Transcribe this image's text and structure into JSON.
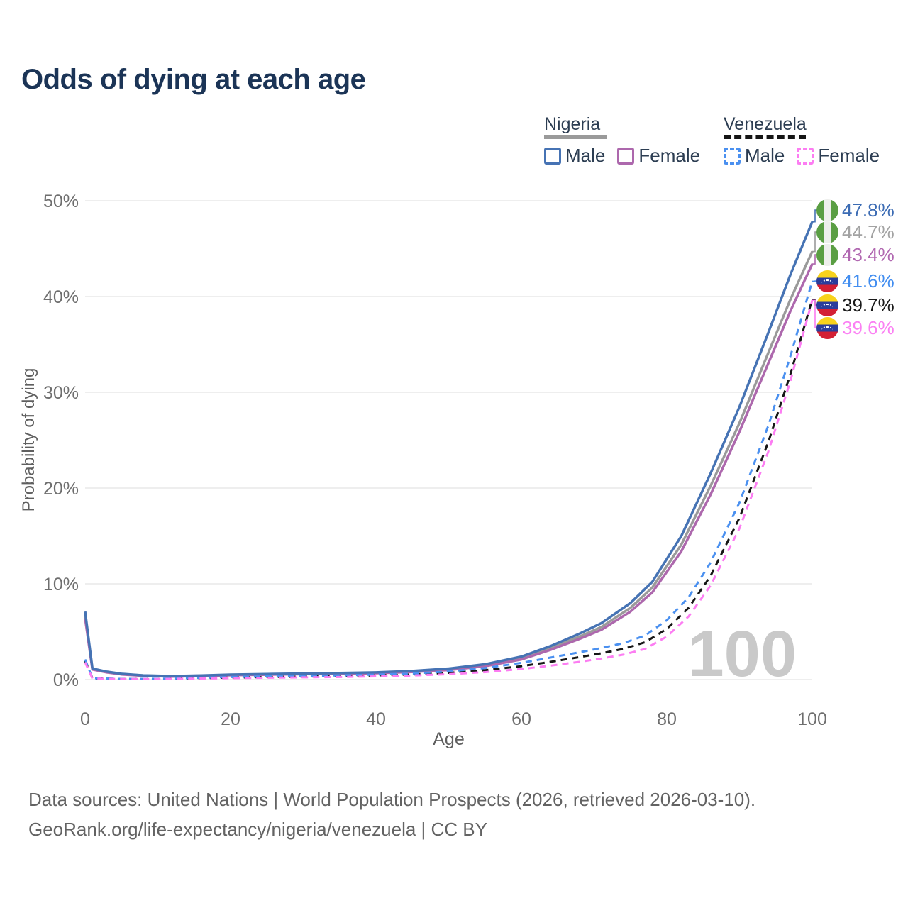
{
  "title": "Odds of dying at each age",
  "legend": {
    "groups": [
      {
        "country": "Nigeria",
        "line_style": "solid",
        "swatch_color": "#9a9a9a",
        "items": [
          {
            "label": "Male",
            "color": "#4673b4"
          },
          {
            "label": "Female",
            "color": "#ad68ad"
          }
        ]
      },
      {
        "country": "Venezuela",
        "line_style": "dashed",
        "swatch_color": "#151515",
        "items": [
          {
            "label": "Male",
            "color": "#4a90f0"
          },
          {
            "label": "Female",
            "color": "#fc7df2"
          }
        ]
      }
    ]
  },
  "footer": {
    "line1": "Data sources: United Nations | World Population Prospects (2026, retrieved 2026-03-10).",
    "line2": "GeoRank.org/life-expectancy/nigeria/venezuela | CC BY"
  },
  "chart_data": {
    "type": "line",
    "title": "Odds of dying at each age",
    "xlabel": "Age",
    "ylabel": "Probability of dying",
    "xlim": [
      0,
      100
    ],
    "ylim": [
      0,
      50
    ],
    "grid": "horizontal",
    "watermark": "100",
    "x_ticks": [
      0,
      20,
      40,
      60,
      80,
      100
    ],
    "y_ticks": [
      {
        "value": 0,
        "label": "0%"
      },
      {
        "value": 10,
        "label": "10%"
      },
      {
        "value": 20,
        "label": "20%"
      },
      {
        "value": 30,
        "label": "30%"
      },
      {
        "value": 40,
        "label": "40%"
      },
      {
        "value": 50,
        "label": "50%"
      }
    ],
    "series": [
      {
        "name": "Nigeria Male",
        "country": "Nigeria",
        "sex": "male",
        "color": "#4673b4",
        "dash": "solid",
        "end_value_pct": 47.8,
        "points": [
          [
            0,
            7.1
          ],
          [
            1,
            1.15
          ],
          [
            3,
            0.82
          ],
          [
            5,
            0.6
          ],
          [
            8,
            0.44
          ],
          [
            12,
            0.36
          ],
          [
            16,
            0.43
          ],
          [
            20,
            0.52
          ],
          [
            25,
            0.58
          ],
          [
            30,
            0.63
          ],
          [
            35,
            0.68
          ],
          [
            40,
            0.75
          ],
          [
            45,
            0.9
          ],
          [
            50,
            1.15
          ],
          [
            55,
            1.6
          ],
          [
            60,
            2.4
          ],
          [
            64,
            3.5
          ],
          [
            68,
            4.8
          ],
          [
            71,
            5.9
          ],
          [
            75,
            8.0
          ],
          [
            78,
            10.2
          ],
          [
            82,
            15.0
          ],
          [
            86,
            21.5
          ],
          [
            90,
            28.5
          ],
          [
            94,
            36.3
          ],
          [
            97,
            42.3
          ],
          [
            100,
            47.8
          ]
        ]
      },
      {
        "name": "Nigeria Both sexes",
        "country": "Nigeria",
        "sex": "both",
        "color": "#9a9a9a",
        "dash": "solid",
        "end_value_pct": 44.7,
        "points": [
          [
            0,
            6.8
          ],
          [
            1,
            1.1
          ],
          [
            3,
            0.78
          ],
          [
            5,
            0.57
          ],
          [
            8,
            0.42
          ],
          [
            12,
            0.34
          ],
          [
            16,
            0.41
          ],
          [
            20,
            0.49
          ],
          [
            25,
            0.55
          ],
          [
            30,
            0.6
          ],
          [
            35,
            0.64
          ],
          [
            40,
            0.71
          ],
          [
            45,
            0.85
          ],
          [
            50,
            1.08
          ],
          [
            55,
            1.5
          ],
          [
            60,
            2.25
          ],
          [
            64,
            3.3
          ],
          [
            68,
            4.5
          ],
          [
            71,
            5.5
          ],
          [
            75,
            7.5
          ],
          [
            78,
            9.6
          ],
          [
            82,
            14.1
          ],
          [
            86,
            20.2
          ],
          [
            90,
            26.8
          ],
          [
            94,
            34.2
          ],
          [
            97,
            39.7
          ],
          [
            100,
            44.7
          ]
        ]
      },
      {
        "name": "Nigeria Female",
        "country": "Nigeria",
        "sex": "female",
        "color": "#ad68ad",
        "dash": "solid",
        "end_value_pct": 43.4,
        "points": [
          [
            0,
            6.4
          ],
          [
            1,
            1.05
          ],
          [
            3,
            0.75
          ],
          [
            5,
            0.54
          ],
          [
            8,
            0.4
          ],
          [
            12,
            0.32
          ],
          [
            16,
            0.38
          ],
          [
            20,
            0.45
          ],
          [
            25,
            0.51
          ],
          [
            30,
            0.56
          ],
          [
            35,
            0.6
          ],
          [
            40,
            0.67
          ],
          [
            45,
            0.8
          ],
          [
            50,
            1.0
          ],
          [
            55,
            1.4
          ],
          [
            60,
            2.1
          ],
          [
            64,
            3.1
          ],
          [
            68,
            4.25
          ],
          [
            71,
            5.2
          ],
          [
            75,
            7.1
          ],
          [
            78,
            9.1
          ],
          [
            82,
            13.4
          ],
          [
            86,
            19.3
          ],
          [
            90,
            25.9
          ],
          [
            94,
            33.1
          ],
          [
            97,
            38.5
          ],
          [
            100,
            43.4
          ]
        ]
      },
      {
        "name": "Venezuela Male",
        "country": "Venezuela",
        "sex": "male",
        "color": "#4a90f0",
        "dash": "dashed",
        "end_value_pct": 41.6,
        "points": [
          [
            0,
            2.1
          ],
          [
            1,
            0.15
          ],
          [
            5,
            0.07
          ],
          [
            10,
            0.08
          ],
          [
            15,
            0.16
          ],
          [
            20,
            0.27
          ],
          [
            25,
            0.33
          ],
          [
            30,
            0.38
          ],
          [
            35,
            0.44
          ],
          [
            40,
            0.52
          ],
          [
            45,
            0.63
          ],
          [
            50,
            0.85
          ],
          [
            55,
            1.2
          ],
          [
            60,
            1.75
          ],
          [
            64,
            2.3
          ],
          [
            68,
            2.85
          ],
          [
            71,
            3.3
          ],
          [
            74,
            3.8
          ],
          [
            77,
            4.6
          ],
          [
            80,
            6.2
          ],
          [
            83,
            8.6
          ],
          [
            86,
            12.2
          ],
          [
            90,
            18.5
          ],
          [
            94,
            26.6
          ],
          [
            97,
            33.8
          ],
          [
            100,
            41.6
          ]
        ]
      },
      {
        "name": "Venezuela Both sexes",
        "country": "Venezuela",
        "sex": "both",
        "color": "#161616",
        "dash": "dashed",
        "end_value_pct": 39.7,
        "points": [
          [
            0,
            1.95
          ],
          [
            1,
            0.13
          ],
          [
            5,
            0.06
          ],
          [
            10,
            0.07
          ],
          [
            15,
            0.13
          ],
          [
            20,
            0.21
          ],
          [
            25,
            0.26
          ],
          [
            30,
            0.31
          ],
          [
            35,
            0.36
          ],
          [
            40,
            0.43
          ],
          [
            45,
            0.53
          ],
          [
            50,
            0.7
          ],
          [
            55,
            0.98
          ],
          [
            60,
            1.4
          ],
          [
            64,
            1.85
          ],
          [
            68,
            2.35
          ],
          [
            71,
            2.75
          ],
          [
            74,
            3.2
          ],
          [
            77,
            3.9
          ],
          [
            80,
            5.3
          ],
          [
            83,
            7.5
          ],
          [
            86,
            10.8
          ],
          [
            90,
            16.9
          ],
          [
            94,
            24.9
          ],
          [
            97,
            31.9
          ],
          [
            100,
            39.7
          ]
        ]
      },
      {
        "name": "Venezuela Female",
        "country": "Venezuela",
        "sex": "female",
        "color": "#fc7df2",
        "dash": "dashed",
        "end_value_pct": 39.6,
        "points": [
          [
            0,
            1.8
          ],
          [
            1,
            0.11
          ],
          [
            5,
            0.05
          ],
          [
            10,
            0.06
          ],
          [
            15,
            0.1
          ],
          [
            20,
            0.15
          ],
          [
            25,
            0.19
          ],
          [
            30,
            0.23
          ],
          [
            35,
            0.27
          ],
          [
            40,
            0.33
          ],
          [
            45,
            0.42
          ],
          [
            50,
            0.56
          ],
          [
            55,
            0.78
          ],
          [
            60,
            1.1
          ],
          [
            64,
            1.45
          ],
          [
            68,
            1.85
          ],
          [
            71,
            2.2
          ],
          [
            74,
            2.6
          ],
          [
            77,
            3.2
          ],
          [
            80,
            4.5
          ],
          [
            83,
            6.6
          ],
          [
            86,
            9.8
          ],
          [
            90,
            15.8
          ],
          [
            94,
            23.9
          ],
          [
            97,
            31.2
          ],
          [
            100,
            39.6
          ]
        ]
      }
    ],
    "end_labels": [
      {
        "value": "47.8%",
        "flag": "nigeria",
        "color": "#3c6cb4"
      },
      {
        "value": "44.7%",
        "flag": "nigeria",
        "color": "#a3a3a3"
      },
      {
        "value": "43.4%",
        "flag": "nigeria",
        "color": "#b168b1"
      },
      {
        "value": "41.6%",
        "flag": "venezuela",
        "color": "#418df0"
      },
      {
        "value": "39.7%",
        "flag": "venezuela",
        "color": "#1a1a1a"
      },
      {
        "value": "39.6%",
        "flag": "venezuela",
        "color": "#fb80f3"
      }
    ]
  }
}
